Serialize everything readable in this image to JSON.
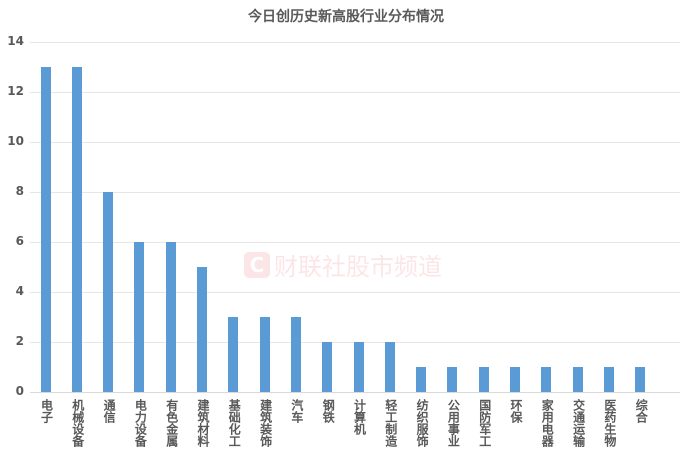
{
  "chart_data": {
    "type": "bar",
    "title": "今日创历史新高股行业分布情况",
    "xlabel": "",
    "ylabel": "",
    "ylim": [
      0,
      14
    ],
    "yticks": [
      0,
      2,
      4,
      6,
      8,
      10,
      12,
      14
    ],
    "grid": true,
    "legend": "none",
    "color": "#5b9bd5",
    "categories": [
      "电子",
      "机械设备",
      "通信",
      "电力设备",
      "有色金属",
      "建筑材料",
      "基础化工",
      "建筑装饰",
      "汽车",
      "钢铁",
      "计算机",
      "轻工制造",
      "纺织服饰",
      "公用事业",
      "国防军工",
      "环保",
      "家用电器",
      "交通运输",
      "医药生物",
      "综合"
    ],
    "values": [
      13,
      13,
      8,
      6,
      6,
      5,
      3,
      3,
      3,
      2,
      2,
      2,
      1,
      1,
      1,
      1,
      1,
      1,
      1,
      1
    ]
  },
  "watermark": {
    "logo": "C",
    "text": "财联社股市频道"
  }
}
